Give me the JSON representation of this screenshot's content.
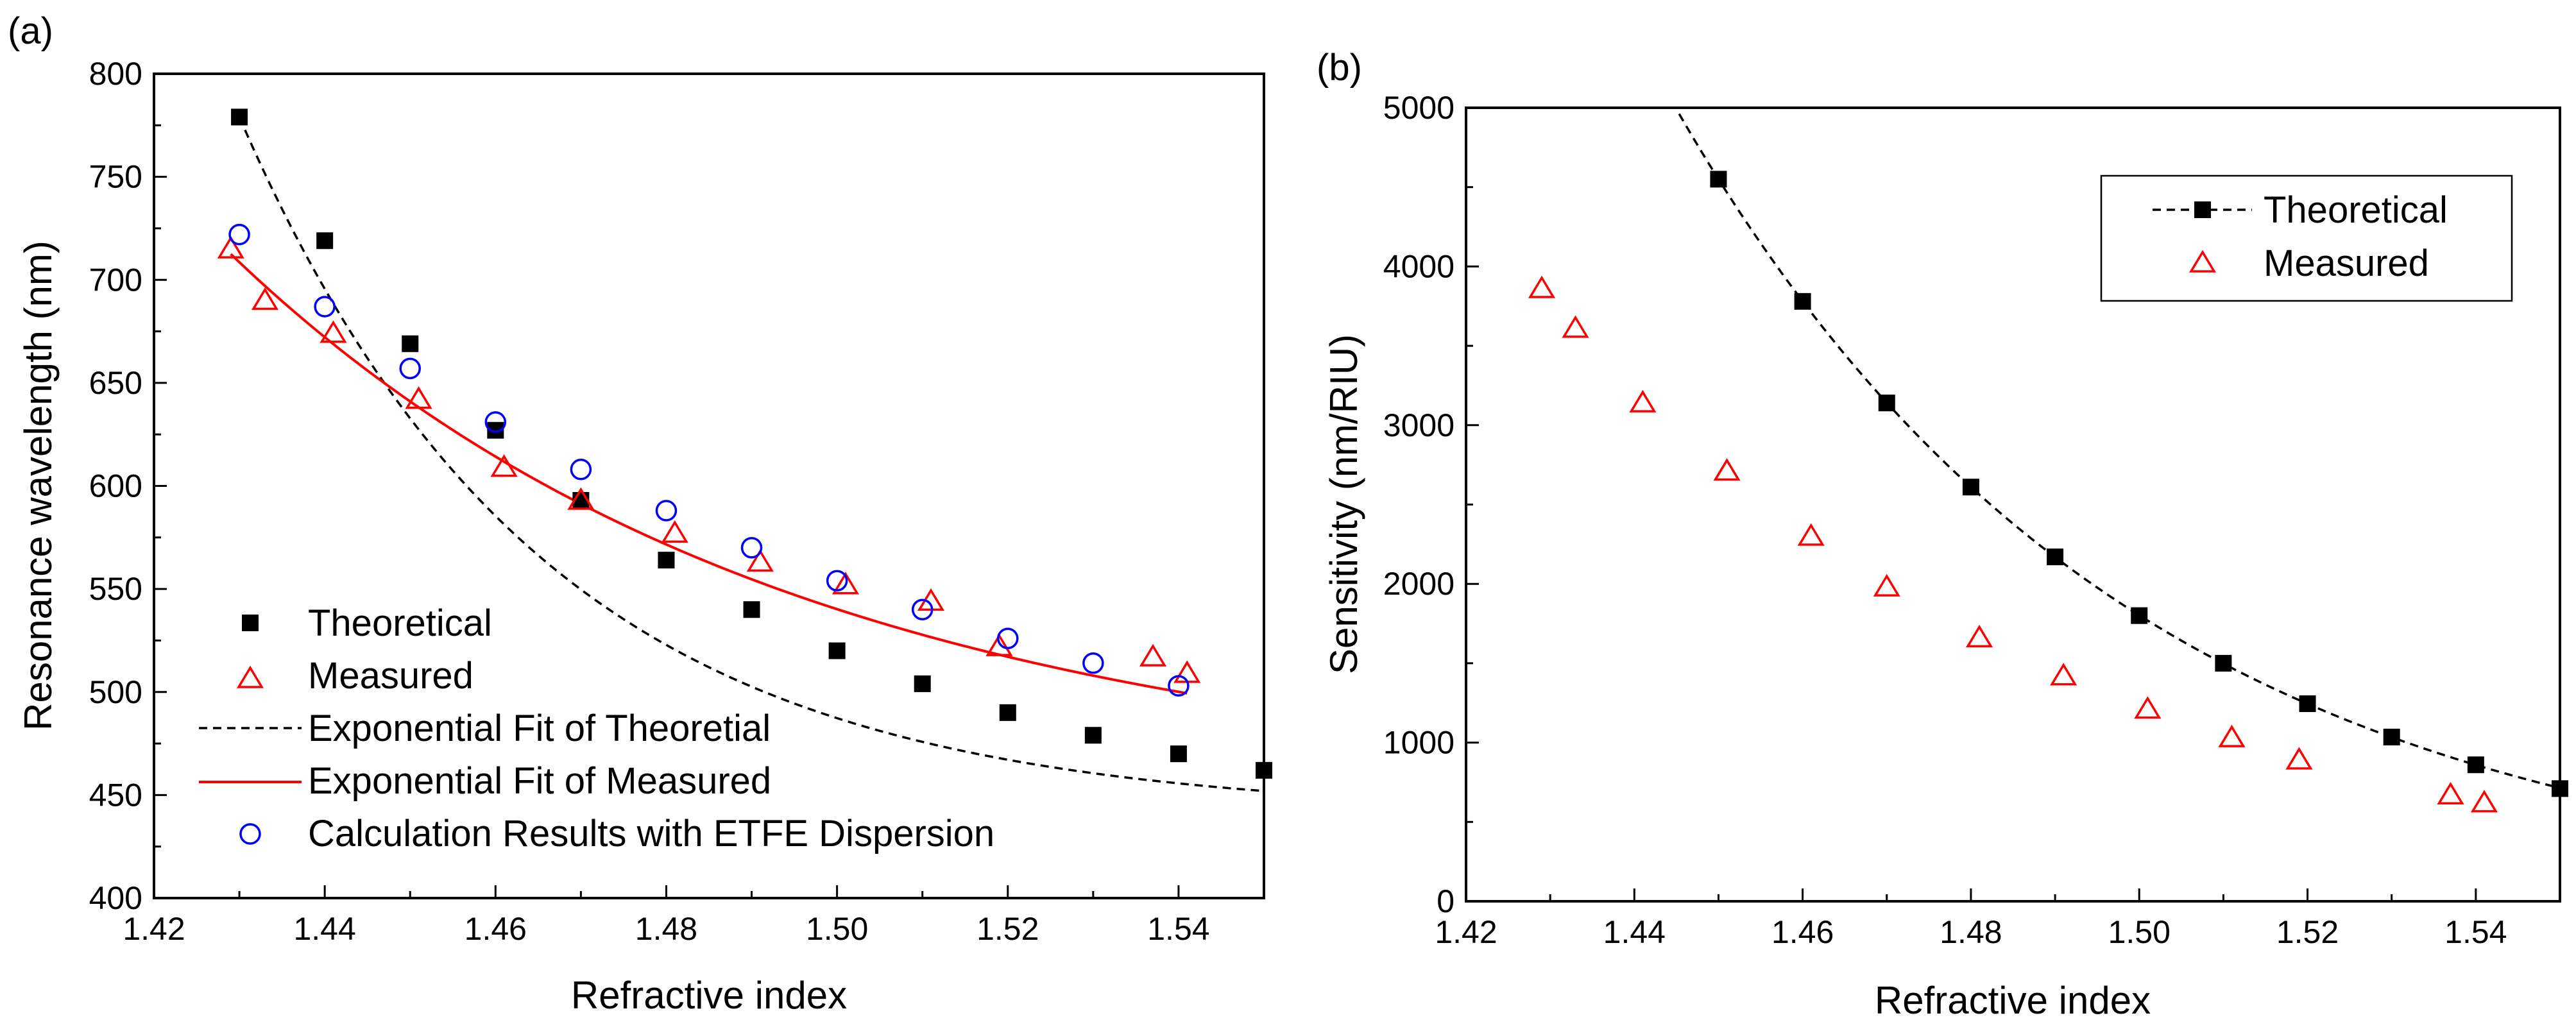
{
  "chart_data": [
    {
      "panel": "(a)",
      "type": "scatter",
      "xlabel": "Refractive index",
      "ylabel": "Resonance wavelength (nm)",
      "xlim": [
        1.42,
        1.55
      ],
      "ylim": [
        400,
        800
      ],
      "xticks": [
        "1.42",
        "1.44",
        "1.46",
        "1.48",
        "1.50",
        "1.52",
        "1.54"
      ],
      "yticks": [
        "400",
        "450",
        "500",
        "550",
        "600",
        "650",
        "700",
        "750",
        "800"
      ],
      "series": [
        {
          "name": "Theoretical",
          "marker": "square",
          "color": "#000000",
          "x": [
            1.43,
            1.44,
            1.45,
            1.46,
            1.47,
            1.48,
            1.49,
            1.5,
            1.51,
            1.52,
            1.53,
            1.54,
            1.55
          ],
          "y": [
            779,
            719,
            669,
            627,
            593,
            564,
            540,
            520,
            504,
            490,
            479,
            470,
            462
          ]
        },
        {
          "name": "Measured",
          "marker": "triangle",
          "color": "#ff0000",
          "x": [
            1.429,
            1.433,
            1.441,
            1.451,
            1.461,
            1.47,
            1.481,
            1.491,
            1.501,
            1.511,
            1.519,
            1.537,
            1.541
          ],
          "y": [
            715,
            690,
            674,
            642,
            609,
            593,
            577,
            563,
            552,
            544,
            522,
            517,
            509
          ]
        },
        {
          "name": "Exponential Fit of Theoretial",
          "marker": "dashed-line",
          "color": "#000000",
          "fit": {
            "y0": 440.6,
            "A": 338.4,
            "x0": 1.43,
            "t": 0.03535
          },
          "x_range": [
            1.43,
            1.55
          ]
        },
        {
          "name": "Exponential Fit of Measured",
          "marker": "solid-line",
          "color": "#ff0000",
          "fit": {
            "y0": 452.7,
            "A": 259.8,
            "x0": 1.429,
            "t": 0.06524
          },
          "x_range": [
            1.429,
            1.541
          ]
        },
        {
          "name": "Calculation Results with ETFE Dispersion",
          "marker": "circle",
          "color": "#0000ff",
          "x": [
            1.43,
            1.44,
            1.45,
            1.46,
            1.47,
            1.48,
            1.49,
            1.5,
            1.51,
            1.52,
            1.53,
            1.54
          ],
          "y": [
            722,
            687,
            657,
            631,
            608,
            588,
            570,
            554,
            540,
            526,
            514,
            503
          ]
        }
      ],
      "legend_position": "bottom-left"
    },
    {
      "panel": "(b)",
      "type": "scatter",
      "xlabel": "Refractive index",
      "ylabel": "Sensitivity (nm/RIU)",
      "xlim": [
        1.42,
        1.55
      ],
      "ylim": [
        0,
        5000
      ],
      "xticks": [
        "1.42",
        "1.44",
        "1.46",
        "1.48",
        "1.50",
        "1.52",
        "1.54"
      ],
      "yticks": [
        "0",
        "1000",
        "2000",
        "3000",
        "4000",
        "5000"
      ],
      "series": [
        {
          "name": "Theoretical",
          "marker": "square-dashed",
          "color": "#000000",
          "x": [
            1.45,
            1.46,
            1.47,
            1.48,
            1.49,
            1.5,
            1.51,
            1.52,
            1.53,
            1.54,
            1.55
          ],
          "y": [
            4550,
            3780,
            3140,
            2610,
            2170,
            1800,
            1500,
            1245,
            1035,
            860,
            710
          ],
          "fit": {
            "A": 4550,
            "x0": 1.45,
            "t": 0.05399
          },
          "x_range": [
            1.444,
            1.55
          ]
        },
        {
          "name": "Measured",
          "marker": "triangle",
          "color": "#ff0000",
          "x": [
            1.429,
            1.433,
            1.441,
            1.451,
            1.461,
            1.47,
            1.481,
            1.491,
            1.501,
            1.511,
            1.519,
            1.537,
            1.541
          ],
          "y": [
            3860,
            3610,
            3140,
            2710,
            2300,
            1980,
            1660,
            1420,
            1210,
            1030,
            890,
            670,
            620
          ]
        }
      ],
      "legend_position": "top-right"
    }
  ]
}
